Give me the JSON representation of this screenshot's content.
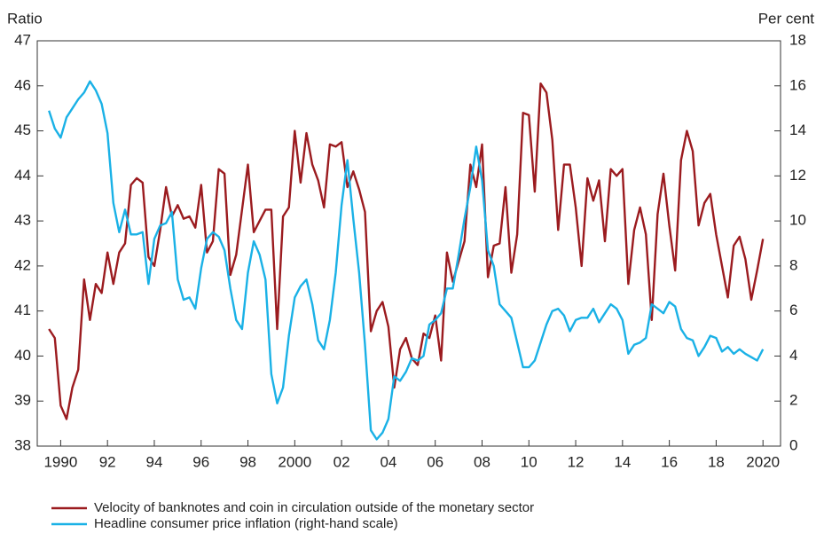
{
  "chart_data": {
    "type": "line",
    "y_label": "Ratio",
    "y2_label": "Per cent",
    "x": [
      1989.5,
      1989.75,
      1990,
      1990.25,
      1990.5,
      1990.75,
      1991,
      1991.25,
      1991.5,
      1991.75,
      1992,
      1992.25,
      1992.5,
      1992.75,
      1993,
      1993.25,
      1993.5,
      1993.75,
      1994,
      1994.25,
      1994.5,
      1994.75,
      1995,
      1995.25,
      1995.5,
      1995.75,
      1996,
      1996.25,
      1996.5,
      1996.75,
      1997,
      1997.25,
      1997.5,
      1997.75,
      1998,
      1998.25,
      1998.5,
      1998.75,
      1999,
      1999.25,
      1999.5,
      1999.75,
      2000,
      2000.25,
      2000.5,
      2000.75,
      2001,
      2001.25,
      2001.5,
      2001.75,
      2002,
      2002.25,
      2002.5,
      2002.75,
      2003,
      2003.25,
      2003.5,
      2003.75,
      2004,
      2004.25,
      2004.5,
      2004.75,
      2005,
      2005.25,
      2005.5,
      2005.75,
      2006,
      2006.25,
      2006.5,
      2006.75,
      2007,
      2007.25,
      2007.5,
      2007.75,
      2008,
      2008.25,
      2008.5,
      2008.75,
      2009,
      2009.25,
      2009.5,
      2009.75,
      2010,
      2010.25,
      2010.5,
      2010.75,
      2011,
      2011.25,
      2011.5,
      2011.75,
      2012,
      2012.25,
      2012.5,
      2012.75,
      2013,
      2013.25,
      2013.5,
      2013.75,
      2014,
      2014.25,
      2014.5,
      2014.75,
      2015,
      2015.25,
      2015.5,
      2015.75,
      2016,
      2016.25,
      2016.5,
      2016.75,
      2017,
      2017.25,
      2017.5,
      2017.75,
      2018,
      2018.25,
      2018.5,
      2018.75,
      2019,
      2019.25,
      2019.5,
      2019.75,
      2020
    ],
    "series": [
      {
        "name": "Velocity of banknotes and coin in circulation outside of the monetary sector",
        "color": "#9b1b1f",
        "values": [
          40.6,
          40.4,
          38.9,
          38.6,
          39.3,
          39.7,
          41.7,
          40.8,
          41.6,
          41.4,
          42.3,
          41.6,
          42.3,
          42.5,
          43.8,
          43.95,
          43.85,
          42.2,
          42.0,
          42.8,
          43.75,
          43.1,
          43.35,
          43.05,
          43.1,
          42.85,
          43.8,
          42.3,
          42.55,
          44.15,
          44.05,
          41.8,
          42.25,
          43.25,
          44.25,
          42.75,
          43.0,
          43.25,
          43.25,
          40.6,
          43.1,
          43.3,
          45.0,
          43.85,
          44.95,
          44.25,
          43.9,
          43.3,
          44.7,
          44.65,
          44.75,
          43.75,
          44.1,
          43.7,
          43.2,
          40.55,
          41.0,
          41.2,
          40.65,
          39.3,
          40.15,
          40.4,
          39.95,
          39.8,
          40.5,
          40.4,
          40.9,
          39.9,
          42.3,
          41.65,
          42.1,
          42.55,
          44.25,
          43.75,
          44.7,
          41.75,
          42.45,
          42.5,
          43.75,
          41.85,
          42.7,
          45.4,
          45.35,
          43.65,
          46.05,
          45.85,
          44.8,
          42.8,
          44.25,
          44.25,
          43.3,
          42.0,
          43.95,
          43.45,
          43.9,
          42.55,
          44.15,
          44.0,
          44.15,
          41.6,
          42.8,
          43.3,
          42.7,
          40.8,
          43.15,
          44.05,
          42.9,
          41.9,
          44.35,
          45.0,
          44.55,
          42.9,
          43.4,
          43.6,
          42.7,
          42.0,
          41.3,
          42.45,
          42.65,
          42.15,
          41.25,
          41.9,
          42.6
        ]
      },
      {
        "name": "Headline consumer price inflation (right-hand scale)",
        "color": "#1ab1e6",
        "axis": "y2",
        "values": [
          14.9,
          14.1,
          13.7,
          14.6,
          15.0,
          15.4,
          15.7,
          16.2,
          15.8,
          15.2,
          13.9,
          10.8,
          9.5,
          10.5,
          9.4,
          9.4,
          9.5,
          7.2,
          9.2,
          9.8,
          9.9,
          10.4,
          7.4,
          6.5,
          6.6,
          6.1,
          7.9,
          9.2,
          9.5,
          9.3,
          8.7,
          7.0,
          5.6,
          5.2,
          7.7,
          9.1,
          8.5,
          7.4,
          3.2,
          1.9,
          2.6,
          4.9,
          6.6,
          7.1,
          7.4,
          6.3,
          4.7,
          4.3,
          5.6,
          7.7,
          10.7,
          12.7,
          10.1,
          7.7,
          4.5,
          0.7,
          0.3,
          0.6,
          1.2,
          3.1,
          2.9,
          3.3,
          3.9,
          3.8,
          4.0,
          5.4,
          5.6,
          5.9,
          7.0,
          7.0,
          8.5,
          10.1,
          11.5,
          13.3,
          11.8,
          8.7,
          8.0,
          6.3,
          6.0,
          5.7,
          4.6,
          3.5,
          3.5,
          3.8,
          4.6,
          5.4,
          6.0,
          6.1,
          5.8,
          5.1,
          5.6,
          5.7,
          5.7,
          6.1,
          5.5,
          5.9,
          6.3,
          6.1,
          5.6,
          4.1,
          4.5,
          4.6,
          4.8,
          6.3,
          6.1,
          5.9,
          6.4,
          6.2,
          5.2,
          4.8,
          4.7,
          4.0,
          4.4,
          4.9,
          4.8,
          4.2,
          4.4,
          4.1,
          4.3,
          4.1,
          3.95,
          3.8,
          4.3
        ]
      }
    ],
    "xlim": [
      1989,
      2020.75
    ],
    "xticks": [
      1990,
      {
        "value": 1992,
        "label": "92"
      },
      {
        "value": 1994,
        "label": "94"
      },
      {
        "value": 1996,
        "label": "96"
      },
      {
        "value": 1998,
        "label": "98"
      },
      2000,
      {
        "value": 2002,
        "label": "02"
      },
      {
        "value": 2004,
        "label": "04"
      },
      {
        "value": 2006,
        "label": "06"
      },
      {
        "value": 2008,
        "label": "08"
      },
      {
        "value": 2010,
        "label": "10"
      },
      {
        "value": 2012,
        "label": "12"
      },
      {
        "value": 2014,
        "label": "14"
      },
      {
        "value": 2016,
        "label": "16"
      },
      {
        "value": 2018,
        "label": "18"
      },
      2020
    ],
    "ylim": [
      38,
      47
    ],
    "yticks": [
      38,
      39,
      40,
      41,
      42,
      43,
      44,
      45,
      46,
      47
    ],
    "y2lim": [
      0,
      18
    ],
    "y2ticks": [
      0,
      2,
      4,
      6,
      8,
      10,
      12,
      14,
      16,
      18
    ]
  }
}
